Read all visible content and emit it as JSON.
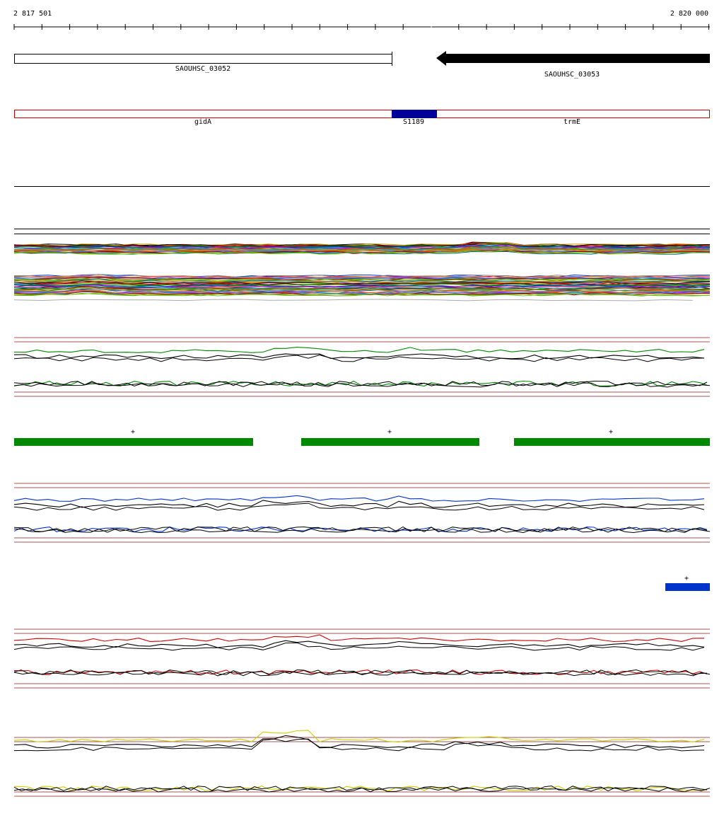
{
  "ruler": {
    "start_label": "2 817 501",
    "end_label": "2 820 000"
  },
  "genes": {
    "left": {
      "name": "SAOUHSC_03052"
    },
    "right": {
      "name": "SAOUHSC_03053"
    }
  },
  "regions": {
    "left": {
      "name": "gidA"
    },
    "middle": {
      "name": "S1189"
    },
    "right": {
      "name": "trmE"
    }
  },
  "strand_blocks": {
    "green": [
      "+",
      "+",
      "+"
    ],
    "blue": [
      "+"
    ]
  },
  "colors": {
    "gene_fill": "#000000",
    "region_border": "#cc0000",
    "region_highlight": "#000099",
    "guide_line": "#8b1a1a",
    "green_block": "#008800",
    "blue_block": "#0033cc",
    "track_green": "#008800",
    "track_blue": "#0033cc",
    "track_red": "#cc0000",
    "track_yellow": "#cccc00"
  }
}
